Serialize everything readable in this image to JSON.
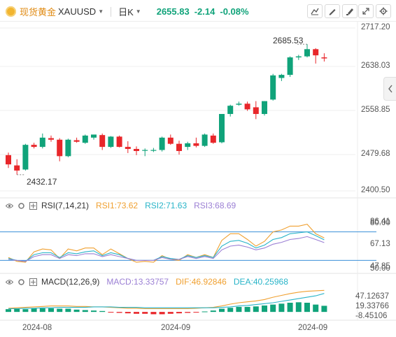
{
  "header": {
    "symbol_name": "现货黄金",
    "symbol_code": "XAUUSD",
    "period": "日K",
    "last_price": "2655.83",
    "change": "-2.14",
    "change_pct": "-0.08%"
  },
  "toolbar": {
    "icons": [
      "draw-line-icon",
      "pencil-icon",
      "edit-brush-icon",
      "expand-icon",
      "settings-icon"
    ]
  },
  "price_axis": {
    "labels": [
      "2717.20",
      "2638.03",
      "2558.85",
      "2479.68",
      "2400.50"
    ]
  },
  "annotations": {
    "high_label": "2685.53",
    "low_label": "2432.17"
  },
  "rsi": {
    "name": "RSI(7,14,21)",
    "rsi1": "RSI1:73.62",
    "rsi2": "RSI2:71.63",
    "rsi3": "RSI3:68.69",
    "axis_labels": [
      "86.41",
      "80.00",
      "67.13",
      "47.85",
      "50.00"
    ]
  },
  "macd": {
    "name": "MACD(12,26,9)",
    "macd": "MACD:13.33757",
    "dif": "DIF:46.92846",
    "dea": "DEA:40.25968",
    "axis_labels": [
      "47.12637",
      "19.33766",
      "-8.45106"
    ]
  },
  "time_axis": [
    "2024-08",
    "2024-09",
    "2024-09"
  ],
  "colors": {
    "up": "#10a37a",
    "down": "#e8262a",
    "rsi1": "#f0a030",
    "rsi2": "#28b4c8",
    "rsi3": "#9b7fd4",
    "level_line": "#3a8fd8",
    "dif": "#f0a030",
    "dea": "#28b4c8"
  },
  "chart_data": {
    "type": "candlestick",
    "ylim": [
      2400.5,
      2717.2
    ],
    "candles": [
      {
        "o": 2470,
        "h": 2475,
        "l": 2445,
        "c": 2452
      },
      {
        "o": 2450,
        "h": 2462,
        "l": 2432,
        "c": 2440
      },
      {
        "o": 2442,
        "h": 2492,
        "l": 2440,
        "c": 2490
      },
      {
        "o": 2490,
        "h": 2494,
        "l": 2483,
        "c": 2486
      },
      {
        "o": 2486,
        "h": 2512,
        "l": 2483,
        "c": 2504
      },
      {
        "o": 2503,
        "h": 2508,
        "l": 2496,
        "c": 2500
      },
      {
        "o": 2500,
        "h": 2503,
        "l": 2458,
        "c": 2468
      },
      {
        "o": 2468,
        "h": 2502,
        "l": 2466,
        "c": 2500
      },
      {
        "o": 2499,
        "h": 2504,
        "l": 2494,
        "c": 2496
      },
      {
        "o": 2494,
        "h": 2510,
        "l": 2492,
        "c": 2508
      },
      {
        "o": 2504,
        "h": 2510,
        "l": 2500,
        "c": 2510
      },
      {
        "o": 2509,
        "h": 2512,
        "l": 2480,
        "c": 2486
      },
      {
        "o": 2486,
        "h": 2507,
        "l": 2484,
        "c": 2506
      },
      {
        "o": 2506,
        "h": 2508,
        "l": 2485,
        "c": 2486
      },
      {
        "o": 2486,
        "h": 2497,
        "l": 2474,
        "c": 2482
      },
      {
        "o": 2482,
        "h": 2487,
        "l": 2470,
        "c": 2478
      },
      {
        "o": 2479,
        "h": 2483,
        "l": 2468,
        "c": 2480
      },
      {
        "o": 2480,
        "h": 2484,
        "l": 2476,
        "c": 2480
      },
      {
        "o": 2480,
        "h": 2506,
        "l": 2477,
        "c": 2504
      },
      {
        "o": 2504,
        "h": 2510,
        "l": 2490,
        "c": 2492
      },
      {
        "o": 2492,
        "h": 2498,
        "l": 2471,
        "c": 2478
      },
      {
        "o": 2486,
        "h": 2496,
        "l": 2480,
        "c": 2493
      },
      {
        "o": 2493,
        "h": 2504,
        "l": 2485,
        "c": 2488
      },
      {
        "o": 2488,
        "h": 2512,
        "l": 2486,
        "c": 2510
      },
      {
        "o": 2508,
        "h": 2512,
        "l": 2492,
        "c": 2494
      },
      {
        "o": 2495,
        "h": 2550,
        "l": 2493,
        "c": 2550
      },
      {
        "o": 2550,
        "h": 2568,
        "l": 2545,
        "c": 2566
      },
      {
        "o": 2568,
        "h": 2574,
        "l": 2566,
        "c": 2570
      },
      {
        "o": 2570,
        "h": 2574,
        "l": 2556,
        "c": 2559
      },
      {
        "o": 2563,
        "h": 2575,
        "l": 2540,
        "c": 2550
      },
      {
        "o": 2550,
        "h": 2575,
        "l": 2547,
        "c": 2575
      },
      {
        "o": 2578,
        "h": 2628,
        "l": 2576,
        "c": 2625
      },
      {
        "o": 2620,
        "h": 2628,
        "l": 2614,
        "c": 2626
      },
      {
        "o": 2626,
        "h": 2662,
        "l": 2622,
        "c": 2660
      },
      {
        "o": 2660,
        "h": 2665,
        "l": 2655,
        "c": 2662
      },
      {
        "o": 2662,
        "h": 2685.53,
        "l": 2660,
        "c": 2676
      },
      {
        "o": 2676,
        "h": 2678,
        "l": 2648,
        "c": 2664
      },
      {
        "o": 2660,
        "h": 2668,
        "l": 2652,
        "c": 2658
      }
    ],
    "rsi_range": [
      40,
      90
    ],
    "rsi1": [
      53,
      49,
      48,
      59,
      62,
      61,
      52,
      62,
      60,
      63,
      63,
      56,
      62,
      57,
      52,
      48,
      49,
      48,
      55,
      51,
      50,
      56,
      53,
      56,
      53,
      71,
      78,
      78,
      72,
      65,
      70,
      80,
      82,
      86,
      86,
      88,
      78,
      73.62
    ],
    "rsi2": [
      52,
      50,
      49,
      56,
      58,
      58,
      53,
      58,
      57,
      59,
      60,
      55,
      58,
      56,
      52,
      50,
      50,
      50,
      54,
      52,
      51,
      55,
      53,
      55,
      53,
      65,
      70,
      71,
      68,
      63,
      66,
      72,
      74,
      78,
      79,
      80,
      76,
      71.63
    ],
    "rsi3": [
      51,
      50,
      49,
      54,
      56,
      56,
      52,
      56,
      55,
      57,
      57,
      54,
      56,
      54,
      52,
      50,
      50,
      50,
      53,
      51,
      51,
      54,
      52,
      54,
      52,
      61,
      65,
      66,
      64,
      61,
      63,
      67,
      69,
      72,
      73,
      75,
      72,
      68.69
    ],
    "rsi_levels": [
      80,
      50
    ],
    "macd_range": [
      -15,
      55
    ],
    "dif": [
      8,
      9,
      10,
      11,
      12,
      13,
      13,
      13,
      12,
      12,
      11,
      11,
      10,
      9,
      8,
      8,
      7,
      7,
      7,
      7,
      7,
      7,
      8,
      9,
      10,
      13,
      17,
      20,
      22,
      24,
      27,
      32,
      36,
      40,
      43,
      45,
      46,
      46.93
    ],
    "dea": [
      7,
      7,
      8,
      8,
      9,
      9,
      10,
      10,
      10,
      10,
      11,
      11,
      11,
      10,
      10,
      10,
      9,
      9,
      9,
      9,
      9,
      9,
      9,
      9,
      9,
      10,
      11,
      13,
      14,
      16,
      18,
      20,
      23,
      26,
      29,
      32,
      35,
      40.26
    ],
    "macd_hist": [
      6,
      7,
      6,
      8,
      8,
      8,
      7,
      7,
      5,
      4,
      3,
      2,
      -1,
      -2,
      -3,
      -4,
      -4,
      -5,
      -5,
      -4,
      -3,
      -2,
      -1,
      1,
      3,
      7,
      9,
      11,
      11,
      12,
      14,
      16,
      18,
      20,
      21,
      20,
      16,
      13.34
    ]
  }
}
